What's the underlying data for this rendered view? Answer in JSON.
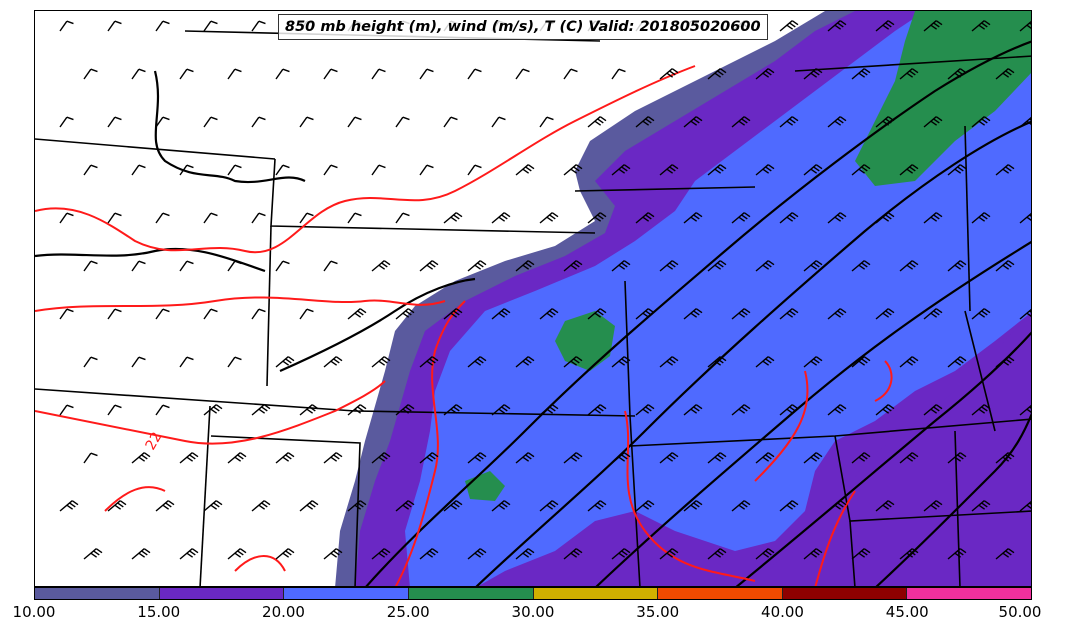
{
  "title": "850 mb height (m), wind (m/s), T (C) Valid: 201805020600",
  "colorbar": {
    "ticks": [
      "10.00",
      "15.00",
      "20.00",
      "25.00",
      "30.00",
      "35.00",
      "40.00",
      "45.00",
      "50.00"
    ],
    "colors": [
      "#5a5a9e",
      "#6a28c4",
      "#4f6aff",
      "#258e4e",
      "#d0b000",
      "#f04a00",
      "#8e0000",
      "#f0309e"
    ]
  },
  "contour_labels": [
    "22"
  ],
  "legend_colors": {
    "height_contours": "#000000",
    "temperature_contours": "#ff1a1a",
    "wind_barbs": "#000000"
  }
}
